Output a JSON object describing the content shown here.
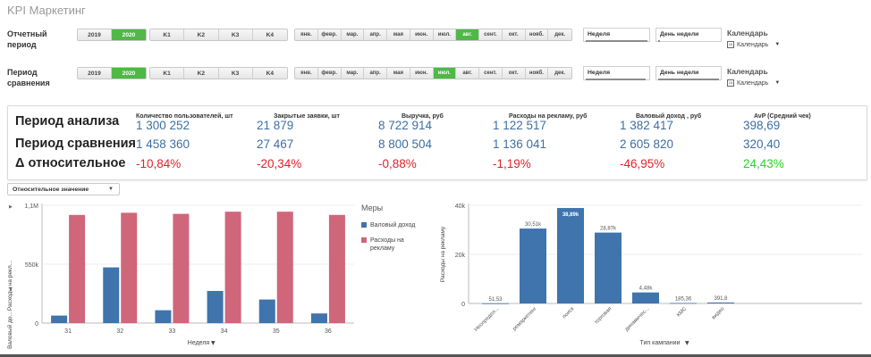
{
  "app": {
    "title": "KPI Маркетинг"
  },
  "filters": {
    "reporting_label": "Отчетный период",
    "comparison_label": "Период сравнения",
    "years": [
      "2019",
      "2020"
    ],
    "quarters": [
      "K1",
      "K2",
      "K3",
      "K4"
    ],
    "months": [
      "янв.",
      "февр.",
      "мар.",
      "апр.",
      "мая",
      "июн.",
      "июл.",
      "авг.",
      "сент.",
      "окт.",
      "нояб.",
      "дек."
    ],
    "reporting_selected_year": "2020",
    "reporting_selected_month": "авг.",
    "comparison_selected_year": "2020",
    "comparison_selected_month": "июл.",
    "week_label": "Неделя",
    "weekday_label": "День недели",
    "calendar_title": "Календарь",
    "calendar_sub": "Календарь"
  },
  "kpi": {
    "row_labels": {
      "analysis": "Период анализа",
      "comparison": "Период сравнения",
      "delta": "Δ относительное"
    },
    "columns": [
      {
        "header": "Количество пользователей, шт",
        "analysis": "1 300 252",
        "comparison": "1 458 360",
        "delta": "-10,84%",
        "positive": false
      },
      {
        "header": "Закрытые заявки, шт",
        "analysis": "21 879",
        "comparison": "27 467",
        "delta": "-20,34%",
        "positive": false
      },
      {
        "header": "Выручка, руб",
        "analysis": "8 722 914",
        "comparison": "8 800 504",
        "delta": "-0,88%",
        "positive": false
      },
      {
        "header": "Расходы на рекламу, руб",
        "analysis": "1 122 517",
        "comparison": "1 136 041",
        "delta": "-1,19%",
        "positive": false
      },
      {
        "header": "Валовый доход , руб",
        "analysis": "1 382 417",
        "comparison": "2 605 820",
        "delta": "-46,95%",
        "positive": false
      },
      {
        "header": "AvP (Средний чек)",
        "analysis": "398,69",
        "comparison": "320,40",
        "delta": "24,43%",
        "positive": true
      }
    ]
  },
  "relative_dropdown": {
    "label": "Относительное значение"
  },
  "colors": {
    "blue": "#3f74ad",
    "pink": "#d0667a",
    "green": "#4fb847"
  },
  "chart_data": [
    {
      "type": "bar",
      "xlabel": "Неделя",
      "ylabel_left": "Валовый до...",
      "ylabel_right": "Расходы на рекл...",
      "categories": [
        "31",
        "32",
        "33",
        "34",
        "35",
        "36"
      ],
      "y_ticks": [
        "0",
        "550k",
        "1,1M"
      ],
      "ylim": [
        0,
        1100000
      ],
      "legend_title": "Меры",
      "series": [
        {
          "name": "Валовый доход",
          "color": "#3f74ad",
          "values": [
            70000,
            520000,
            120000,
            300000,
            220000,
            90000
          ]
        },
        {
          "name": "Расходы на рекламу",
          "color": "#d0667a",
          "values": [
            1010000,
            1030000,
            1020000,
            1040000,
            1040000,
            1010000
          ]
        }
      ]
    },
    {
      "type": "bar",
      "xlabel": "Тип кампании",
      "ylabel": "Расходы на рекламу",
      "categories": [
        "Неопредел...",
        "ремаркетинг",
        "поиск",
        "торговая",
        "динамичес...",
        "КМС",
        "видео"
      ],
      "values": [
        51.53,
        30510,
        38890,
        28870,
        4480,
        185.36,
        391.8
      ],
      "value_labels": [
        "51,53",
        "30,51k",
        "38,89k",
        "28,87k",
        "4,48k",
        "185,36",
        "391,8"
      ],
      "y_ticks": [
        "0",
        "20k",
        "40k"
      ],
      "ylim": [
        0,
        40000
      ],
      "color": "#3f74ad"
    }
  ]
}
